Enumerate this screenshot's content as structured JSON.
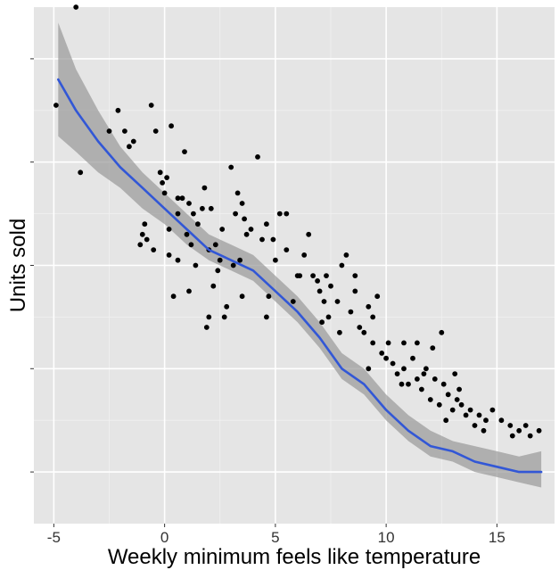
{
  "chart_data": {
    "type": "scatter",
    "title": "",
    "xlabel": "Weekly minimum feels like temperature",
    "ylabel": "Units sold",
    "xlim": [
      -5.9,
      17.6
    ],
    "ylim": [
      0,
      100
    ],
    "grid": true,
    "legend": "none",
    "y_tick_labels_shown": false,
    "x_ticks": [
      -5,
      0,
      5,
      10,
      15
    ],
    "x_tick_labels": [
      "-5",
      "0",
      "5",
      "10",
      "15"
    ],
    "y_ticks": [
      10,
      30,
      50,
      70,
      90
    ],
    "colors": {
      "panel": "#e5e5e5",
      "grid_major": "#ffffff",
      "grid_minor": "#f1f1f1",
      "points": "#000000",
      "smooth_line": "#3257d6",
      "ribbon": "#999999"
    },
    "series": [
      {
        "kind": "points",
        "points": [
          [
            -4.9,
            81
          ],
          [
            -4.0,
            100
          ],
          [
            -3.8,
            68
          ],
          [
            -2.5,
            76
          ],
          [
            -2.1,
            80
          ],
          [
            -1.8,
            76
          ],
          [
            -1.6,
            73
          ],
          [
            -1.4,
            74
          ],
          [
            -1.1,
            54
          ],
          [
            -1.0,
            56
          ],
          [
            -0.8,
            55
          ],
          [
            -0.6,
            81
          ],
          [
            -0.4,
            76
          ],
          [
            -0.2,
            68
          ],
          [
            -0.1,
            66
          ],
          [
            0.0,
            64
          ],
          [
            0.1,
            67
          ],
          [
            0.2,
            52
          ],
          [
            0.3,
            77
          ],
          [
            0.4,
            44
          ],
          [
            0.6,
            60
          ],
          [
            0.8,
            63
          ],
          [
            0.9,
            72
          ],
          [
            1.0,
            56
          ],
          [
            1.1,
            45
          ],
          [
            1.2,
            54
          ],
          [
            1.3,
            60
          ],
          [
            1.5,
            58
          ],
          [
            1.7,
            61
          ],
          [
            1.8,
            65
          ],
          [
            2.0,
            53
          ],
          [
            2.1,
            61
          ],
          [
            2.2,
            46
          ],
          [
            2.3,
            54
          ],
          [
            2.4,
            49
          ],
          [
            2.5,
            51
          ],
          [
            2.6,
            57
          ],
          [
            2.7,
            40
          ],
          [
            2.8,
            42
          ],
          [
            3.0,
            69
          ],
          [
            3.2,
            60
          ],
          [
            3.3,
            64
          ],
          [
            3.4,
            51
          ],
          [
            3.5,
            62
          ],
          [
            3.6,
            59
          ],
          [
            3.7,
            56
          ],
          [
            3.9,
            57
          ],
          [
            4.2,
            71
          ],
          [
            4.4,
            55
          ],
          [
            4.6,
            58
          ],
          [
            4.7,
            44
          ],
          [
            4.9,
            55
          ],
          [
            5.0,
            51
          ],
          [
            5.2,
            60
          ],
          [
            5.5,
            60
          ],
          [
            5.8,
            43
          ],
          [
            6.0,
            48
          ],
          [
            6.3,
            52
          ],
          [
            6.5,
            56
          ],
          [
            6.7,
            48
          ],
          [
            6.9,
            47
          ],
          [
            7.0,
            45
          ],
          [
            7.1,
            39
          ],
          [
            7.2,
            43
          ],
          [
            7.3,
            48
          ],
          [
            7.5,
            46
          ],
          [
            7.8,
            43
          ],
          [
            8.0,
            50
          ],
          [
            8.2,
            52
          ],
          [
            8.4,
            41
          ],
          [
            8.6,
            45
          ],
          [
            8.8,
            38
          ],
          [
            9.0,
            37
          ],
          [
            9.2,
            42
          ],
          [
            9.4,
            40
          ],
          [
            9.6,
            44
          ],
          [
            9.8,
            33
          ],
          [
            10.0,
            32
          ],
          [
            10.1,
            35
          ],
          [
            10.3,
            31
          ],
          [
            10.5,
            29
          ],
          [
            10.8,
            30
          ],
          [
            11.0,
            27
          ],
          [
            11.2,
            32
          ],
          [
            11.4,
            28
          ],
          [
            11.6,
            26
          ],
          [
            11.8,
            30
          ],
          [
            12.0,
            24
          ],
          [
            12.2,
            28
          ],
          [
            12.4,
            23
          ],
          [
            12.6,
            27
          ],
          [
            12.8,
            25
          ],
          [
            13.0,
            22
          ],
          [
            13.2,
            24
          ],
          [
            13.4,
            23
          ],
          [
            13.6,
            21
          ],
          [
            13.8,
            22
          ],
          [
            14.0,
            19
          ],
          [
            14.2,
            21
          ],
          [
            14.5,
            20
          ],
          [
            14.8,
            22
          ],
          [
            15.2,
            20
          ],
          [
            15.6,
            19
          ],
          [
            16.0,
            18
          ],
          [
            16.5,
            17
          ],
          [
            16.9,
            18
          ],
          [
            12.5,
            37
          ],
          [
            13.1,
            29
          ],
          [
            11.7,
            29
          ],
          [
            9.2,
            30
          ],
          [
            10.8,
            35
          ],
          [
            12.1,
            34
          ],
          [
            8.6,
            48
          ],
          [
            7.4,
            40
          ],
          [
            6.1,
            48
          ],
          [
            5.5,
            53
          ],
          [
            7.9,
            37
          ],
          [
            9.4,
            35
          ],
          [
            10.7,
            27
          ],
          [
            11.4,
            35
          ],
          [
            12.7,
            20
          ],
          [
            13.3,
            26
          ],
          [
            14.4,
            18
          ],
          [
            15.7,
            17
          ],
          [
            16.3,
            19
          ],
          [
            0.6,
            51
          ],
          [
            1.9,
            38
          ],
          [
            3.1,
            50
          ],
          [
            3.5,
            44
          ],
          [
            4.6,
            40
          ],
          [
            2.0,
            40
          ],
          [
            1.4,
            50
          ],
          [
            0.2,
            57
          ],
          [
            -0.5,
            53
          ],
          [
            1.1,
            62
          ],
          [
            -0.9,
            58
          ],
          [
            0.6,
            63
          ]
        ]
      },
      {
        "kind": "smooth",
        "name": "",
        "x": [
          -4.8,
          -4.0,
          -3.0,
          -2.0,
          -1.0,
          0.0,
          1.0,
          2.0,
          3.0,
          4.0,
          5.0,
          6.0,
          7.0,
          8.0,
          9.0,
          10.0,
          11.0,
          12.0,
          13.0,
          14.0,
          15.0,
          16.0,
          17.0
        ],
        "y": [
          86,
          80,
          74,
          69,
          65,
          61,
          57,
          53,
          51,
          49,
          45,
          41,
          36,
          30,
          27,
          22,
          18,
          15,
          14,
          12,
          11,
          10,
          10
        ],
        "lower": [
          75,
          72,
          68,
          65,
          61,
          58,
          54,
          51,
          49,
          47,
          43,
          39,
          34,
          28,
          25,
          20,
          16,
          13,
          12,
          10,
          9,
          8,
          7
        ],
        "upper": [
          97,
          88,
          80,
          73,
          68,
          64,
          60,
          56,
          54,
          52,
          48,
          44,
          39,
          33,
          30,
          25,
          21,
          18,
          16,
          15,
          14,
          13,
          14
        ]
      }
    ]
  }
}
